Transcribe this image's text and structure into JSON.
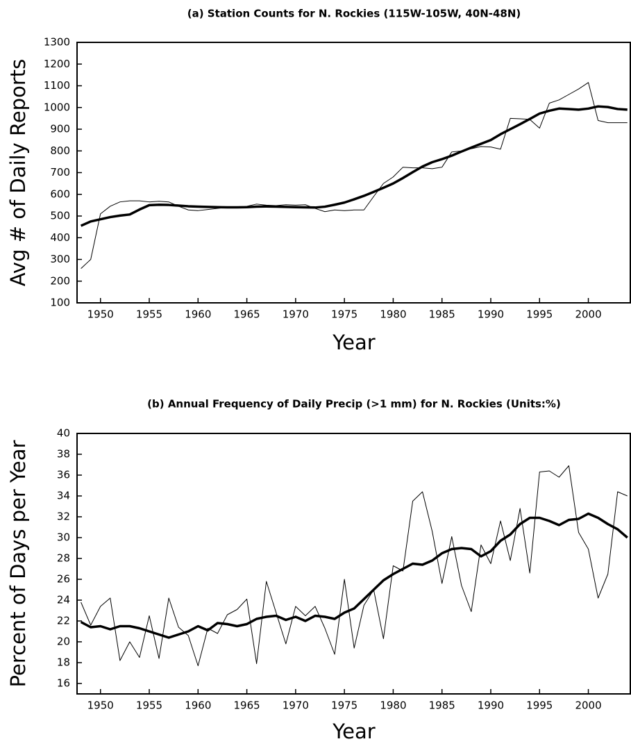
{
  "chart_data": [
    {
      "type": "line",
      "title": "(a) Station Counts for N. Rockies (115W-105W, 40N-48N)",
      "x_label": "Year",
      "y_label": "Avg # of Daily Reports",
      "x": [
        1948,
        1949,
        1950,
        1951,
        1952,
        1953,
        1954,
        1955,
        1956,
        1957,
        1958,
        1959,
        1960,
        1961,
        1962,
        1963,
        1964,
        1965,
        1966,
        1967,
        1968,
        1969,
        1970,
        1971,
        1972,
        1973,
        1974,
        1975,
        1976,
        1977,
        1978,
        1979,
        1980,
        1981,
        1982,
        1983,
        1984,
        1985,
        1986,
        1987,
        1988,
        1989,
        1990,
        1991,
        1992,
        1993,
        1994,
        1995,
        1996,
        1997,
        1998,
        1999,
        2000,
        2001,
        2002,
        2003,
        2004
      ],
      "series": [
        {
          "color": "#000000",
          "width": 1,
          "values": [
            258,
            300,
            510,
            545,
            565,
            570,
            570,
            565,
            568,
            565,
            545,
            528,
            525,
            530,
            535,
            540,
            540,
            545,
            555,
            550,
            548,
            552,
            550,
            552,
            535,
            520,
            528,
            525,
            528,
            528,
            590,
            650,
            680,
            725,
            722,
            722,
            718,
            725,
            795,
            800,
            810,
            820,
            818,
            808,
            950,
            948,
            945,
            905,
            1020,
            1035,
            1060,
            1085,
            1115,
            940,
            930,
            930,
            930
          ]
        },
        {
          "color": "#000000",
          "width": 3.5,
          "values": [
            455,
            475,
            485,
            495,
            502,
            507,
            530,
            550,
            552,
            551,
            548,
            545,
            543,
            542,
            541,
            540,
            540,
            541,
            543,
            544,
            543,
            542,
            541,
            540,
            539,
            543,
            552,
            562,
            577,
            593,
            611,
            630,
            650,
            675,
            702,
            728,
            748,
            762,
            778,
            797,
            815,
            833,
            850,
            877,
            900,
            923,
            947,
            972,
            985,
            995,
            993,
            990,
            995,
            1005,
            1002,
            993,
            990
          ]
        }
      ],
      "xlim": [
        1947.6,
        2004.3
      ],
      "xticks": [
        1950,
        1955,
        1960,
        1965,
        1970,
        1975,
        1980,
        1985,
        1990,
        1995,
        2000
      ],
      "ylim": [
        100,
        1300
      ],
      "yticks": [
        100,
        200,
        300,
        400,
        500,
        600,
        700,
        800,
        900,
        1000,
        1100,
        1200,
        1300
      ]
    },
    {
      "type": "line",
      "title": "(b) Annual Frequency of Daily Precip (>1 mm) for N. Rockies (Units:%)",
      "x_label": "Year",
      "y_label": "Percent of Days per Year",
      "x": [
        1948,
        1949,
        1950,
        1951,
        1952,
        1953,
        1954,
        1955,
        1956,
        1957,
        1958,
        1959,
        1960,
        1961,
        1962,
        1963,
        1964,
        1965,
        1966,
        1967,
        1968,
        1969,
        1970,
        1971,
        1972,
        1973,
        1974,
        1975,
        1976,
        1977,
        1978,
        1979,
        1980,
        1981,
        1982,
        1983,
        1984,
        1985,
        1986,
        1987,
        1988,
        1989,
        1990,
        1991,
        1992,
        1993,
        1994,
        1995,
        1996,
        1997,
        1998,
        1999,
        2000,
        2001,
        2002,
        2003,
        2004
      ],
      "series": [
        {
          "color": "#000000",
          "width": 1,
          "values": [
            23.8,
            21.6,
            23.4,
            24.2,
            18.2,
            20.0,
            18.5,
            22.5,
            18.4,
            24.2,
            21.4,
            20.6,
            17.7,
            21.3,
            20.8,
            22.6,
            23.1,
            24.1,
            17.9,
            25.8,
            22.8,
            19.8,
            23.4,
            22.5,
            23.4,
            21.3,
            18.8,
            26.0,
            19.4,
            23.5,
            25.0,
            20.3,
            27.3,
            26.8,
            33.5,
            34.4,
            30.6,
            25.6,
            30.1,
            25.4,
            22.9,
            29.3,
            27.5,
            31.6,
            27.8,
            32.8,
            26.6,
            36.3,
            36.4,
            35.8,
            36.9,
            30.5,
            28.9,
            24.2,
            26.5,
            34.4,
            34.0
          ]
        },
        {
          "color": "#000000",
          "width": 3.5,
          "values": [
            21.9,
            21.4,
            21.5,
            21.2,
            21.5,
            21.5,
            21.3,
            21.0,
            20.7,
            20.4,
            20.7,
            21.0,
            21.5,
            21.1,
            21.8,
            21.7,
            21.5,
            21.7,
            22.2,
            22.4,
            22.5,
            22.1,
            22.4,
            22.0,
            22.5,
            22.4,
            22.2,
            22.8,
            23.2,
            24.1,
            25.0,
            25.9,
            26.5,
            27.0,
            27.5,
            27.4,
            27.8,
            28.5,
            28.9,
            29.0,
            28.9,
            28.2,
            28.7,
            29.7,
            30.3,
            31.3,
            31.9,
            31.9,
            31.6,
            31.2,
            31.7,
            31.8,
            32.3,
            31.9,
            31.3,
            30.8,
            30.0
          ]
        }
      ],
      "xlim": [
        1947.6,
        2004.3
      ],
      "xticks": [
        1950,
        1955,
        1960,
        1965,
        1970,
        1975,
        1980,
        1985,
        1990,
        1995,
        2000
      ],
      "ylim": [
        15,
        40
      ],
      "yticks": [
        16,
        18,
        20,
        22,
        24,
        26,
        28,
        30,
        32,
        34,
        36,
        38,
        40
      ]
    }
  ]
}
